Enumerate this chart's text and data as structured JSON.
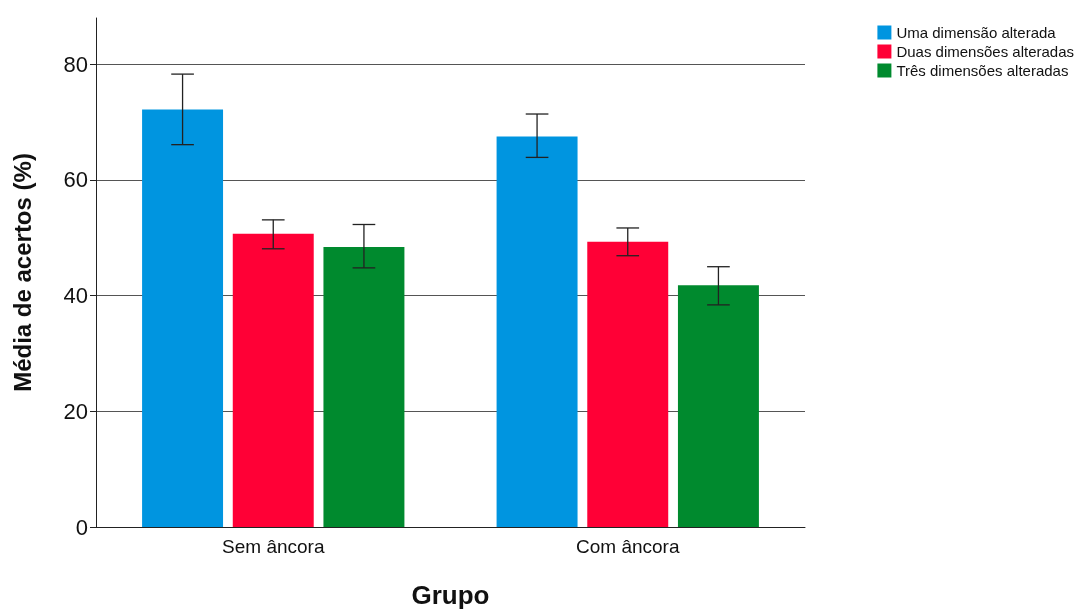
{
  "chart_data": {
    "type": "bar",
    "xlabel": "Grupo",
    "ylabel": "Média de acertos (%)",
    "categories": [
      "Sem âncora",
      "Com âncora"
    ],
    "series": [
      {
        "name": "Uma dimensão alterada",
        "color": "#0095e0",
        "values": [
          72.2,
          67.5
        ],
        "errors": [
          [
            66.1,
            78.3
          ],
          [
            63.9,
            71.4
          ]
        ]
      },
      {
        "name": "Duas dimensões alteradas",
        "color": "#ff0036",
        "values": [
          50.7,
          49.3
        ],
        "errors": [
          [
            48.1,
            53.1
          ],
          [
            46.9,
            51.7
          ]
        ]
      },
      {
        "name": "Três dimensões alteradas",
        "color": "#008a2e",
        "values": [
          48.4,
          41.8
        ],
        "errors": [
          [
            44.8,
            52.3
          ],
          [
            38.4,
            45.0
          ]
        ]
      }
    ],
    "ylim": [
      0,
      88
    ],
    "yticks": [
      0,
      20,
      40,
      60,
      80
    ],
    "grid": "y",
    "legend": "top right"
  }
}
